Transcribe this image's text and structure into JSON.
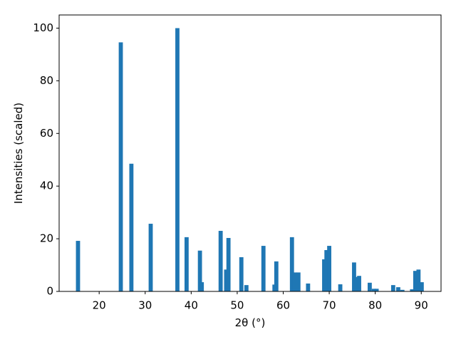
{
  "chart_data": {
    "type": "bar",
    "xlabel": "2θ (°)",
    "ylabel": "Intensities (scaled)",
    "x": [
      15.4,
      24.7,
      27.0,
      31.2,
      37.0,
      39.0,
      41.9,
      42.3,
      46.4,
      47.6,
      48.1,
      50.9,
      52.0,
      55.7,
      58.1,
      58.5,
      61.9,
      62.5,
      63.3,
      65.4,
      68.9,
      69.4,
      70.0,
      72.4,
      75.4,
      76.0,
      76.5,
      78.8,
      79.7,
      80.3,
      83.9,
      85.0,
      85.9,
      88.0,
      88.7,
      89.4,
      90.1
    ],
    "values": [
      19.2,
      94.6,
      48.5,
      25.7,
      100,
      20.6,
      15.5,
      3.5,
      23.0,
      8.3,
      20.3,
      13.0,
      2.4,
      17.3,
      2.6,
      11.4,
      20.6,
      7.2,
      7.2,
      3.0,
      12.2,
      15.7,
      17.3,
      2.7,
      11.0,
      5.5,
      5.9,
      3.3,
      1.0,
      1.0,
      2.4,
      1.6,
      0.6,
      0.8,
      7.8,
      8.3,
      3.5
    ],
    "color": "#1f77b4",
    "xlim": [
      11.3,
      94.3
    ],
    "ylim": [
      0,
      105
    ],
    "xticks": [
      20,
      30,
      40,
      50,
      60,
      70,
      80,
      90
    ],
    "yticks": [
      0,
      20,
      40,
      60,
      80,
      100
    ]
  }
}
